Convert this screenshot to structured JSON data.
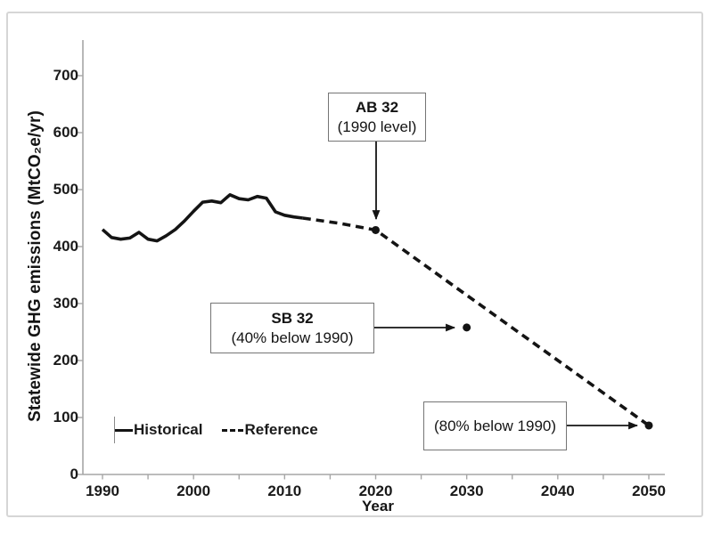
{
  "chart_data": {
    "type": "line",
    "title": "",
    "xlabel": "Year",
    "ylabel": "Statewide GHG emissions (MtCO₂e/yr)",
    "x_ticks": [
      1990,
      2000,
      2010,
      2020,
      2030,
      2040,
      2050
    ],
    "x_minor_tick_step": 5,
    "y_ticks": [
      0,
      100,
      200,
      300,
      400,
      500,
      600,
      700
    ],
    "xlim": [
      1988,
      2052
    ],
    "ylim": [
      0,
      760
    ],
    "grid": false,
    "legend_position": "inside-bottom-left",
    "series": [
      {
        "name": "Historical",
        "style": "solid",
        "points": [
          [
            1990,
            430
          ],
          [
            1991,
            416
          ],
          [
            1992,
            413
          ],
          [
            1993,
            415
          ],
          [
            1994,
            425
          ],
          [
            1995,
            413
          ],
          [
            1996,
            410
          ],
          [
            1997,
            419
          ],
          [
            1998,
            430
          ],
          [
            1999,
            445
          ],
          [
            2000,
            462
          ],
          [
            2001,
            478
          ],
          [
            2002,
            480
          ],
          [
            2003,
            477
          ],
          [
            2004,
            491
          ],
          [
            2005,
            484
          ],
          [
            2006,
            482
          ],
          [
            2007,
            488
          ],
          [
            2008,
            485
          ],
          [
            2009,
            461
          ],
          [
            2010,
            455
          ],
          [
            2011,
            452
          ],
          [
            2012,
            450
          ]
        ]
      },
      {
        "name": "Reference",
        "style": "dashed",
        "points": [
          [
            2012,
            450
          ],
          [
            2016,
            441
          ],
          [
            2020,
            429
          ],
          [
            2050,
            86
          ]
        ]
      }
    ],
    "markers": [
      {
        "year": 2020,
        "value": 429,
        "label": "AB 32 (1990 level)"
      },
      {
        "year": 2030,
        "value": 258,
        "label": "SB 32 (40% below 1990)"
      },
      {
        "year": 2050,
        "value": 86,
        "label": "(80% below 1990)"
      }
    ],
    "colors": {
      "line": "#141414",
      "axis": "#a6a6a6"
    }
  },
  "annotations": {
    "ab32": {
      "title": "AB 32",
      "subtitle": "(1990 level)"
    },
    "sb32": {
      "title": "SB 32",
      "subtitle": "(40% below 1990)"
    },
    "pct80": {
      "label": "(80% below 1990)"
    }
  }
}
